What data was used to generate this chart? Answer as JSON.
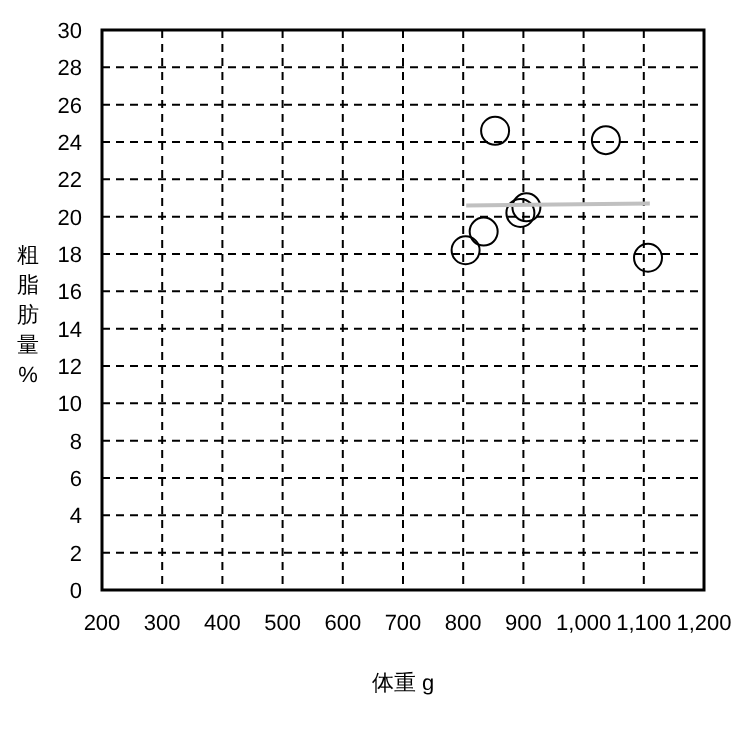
{
  "chart_data": {
    "type": "scatter",
    "xlabel": "体重 g",
    "ylabel": "粗脂肪量%",
    "xlim": [
      200,
      1200
    ],
    "ylim": [
      0,
      30
    ],
    "xticks": [
      200,
      300,
      400,
      500,
      600,
      700,
      800,
      900,
      {
        "value": 1000,
        "label": "1,000"
      },
      {
        "value": 1100,
        "label": "1,100"
      },
      {
        "value": 1200,
        "label": "1,200"
      }
    ],
    "yticks": [
      0,
      2,
      4,
      6,
      8,
      10,
      12,
      14,
      16,
      18,
      20,
      22,
      24,
      26,
      28,
      30
    ],
    "grid": true,
    "marker": "circle",
    "series": [
      {
        "color": "#000000",
        "x": [
          853,
          1037,
          905,
          895,
          834,
          804,
          1107
        ],
        "values": [
          24.6,
          24.1,
          20.5,
          20.2,
          19.2,
          18.2,
          17.8
        ]
      },
      {
        "type": "line",
        "color": "#c0c0c0",
        "x": [
          805,
          1110
        ],
        "values": [
          20.6,
          20.7
        ],
        "marker": "none"
      }
    ]
  }
}
